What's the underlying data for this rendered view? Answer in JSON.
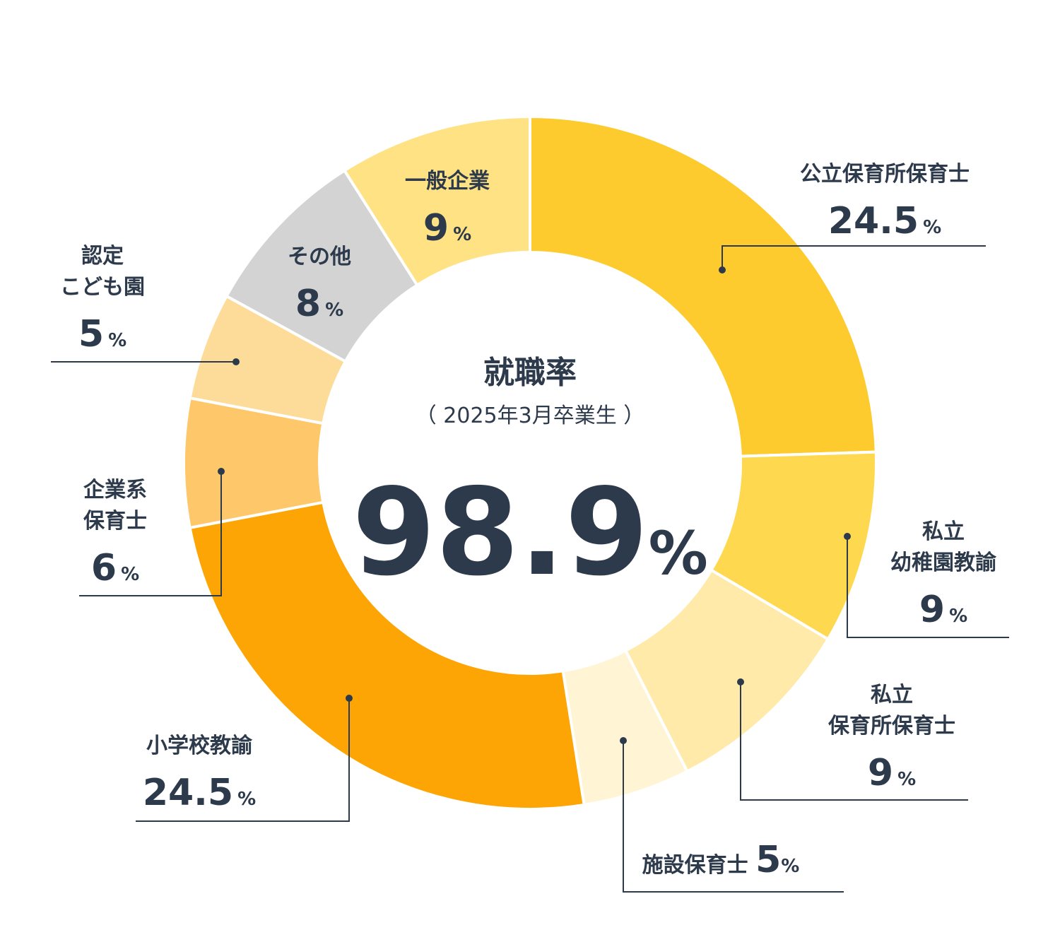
{
  "chart_data": {
    "type": "pie",
    "title": "就職率",
    "subtitle": "（ 2025年3月卒業生 ）",
    "total_label": "98.9",
    "total_unit": "%",
    "unit": "%",
    "slices": [
      {
        "name": "公立保育所保育士",
        "lines": [
          "公立保育所保育士"
        ],
        "value": 24.5,
        "color": "#fdcb2d"
      },
      {
        "name": "私立幼稚園教諭",
        "lines": [
          "私立",
          "幼稚園教諭"
        ],
        "value": 9,
        "color": "#fed84f"
      },
      {
        "name": "私立保育所保育士",
        "lines": [
          "私立",
          "保育所保育士"
        ],
        "value": 9,
        "color": "#ffeaaa"
      },
      {
        "name": "施設保育士",
        "lines": [
          "施設保育士"
        ],
        "value": 5,
        "color": "#fff5d5"
      },
      {
        "name": "小学校教諭",
        "lines": [
          "小学校教諭"
        ],
        "value": 24.5,
        "color": "#fca504"
      },
      {
        "name": "企業系保育士",
        "lines": [
          "企業系",
          "保育士"
        ],
        "value": 6,
        "color": "#fec86a"
      },
      {
        "name": "認定こども園",
        "lines": [
          "認定",
          "こども園"
        ],
        "value": 5,
        "color": "#fddc9a"
      },
      {
        "name": "その他",
        "lines": [
          "その他"
        ],
        "value": 8,
        "color": "#d3d3d3"
      },
      {
        "name": "一般企業",
        "lines": [
          "一般企業"
        ],
        "value": 9,
        "color": "#fee283"
      }
    ]
  }
}
